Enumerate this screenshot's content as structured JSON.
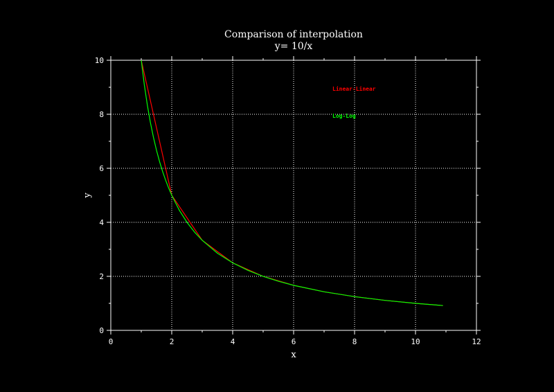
{
  "chart_data": {
    "type": "line",
    "title": "Comparison of interpolation",
    "subtitle": "y= 10/x",
    "xlabel": "x",
    "ylabel": "y",
    "xlim": [
      0,
      12
    ],
    "ylim": [
      0,
      10
    ],
    "xticks": [
      "0",
      "2",
      "4",
      "6",
      "8",
      "10",
      "12"
    ],
    "yticks": [
      "0",
      "2",
      "4",
      "6",
      "8",
      "10"
    ],
    "grid": true,
    "legend_position": "top-right",
    "series": [
      {
        "name": "Linear-Linear",
        "color": "#ff0000",
        "x": [
          1,
          2,
          3,
          4,
          5,
          6,
          7,
          8,
          9,
          10,
          10.9
        ],
        "y": [
          10,
          5,
          3.333,
          2.5,
          2,
          1.667,
          1.429,
          1.25,
          1.111,
          1,
          0.917
        ]
      },
      {
        "name": "Log-Log",
        "color": "#00ff00",
        "x": [
          1,
          1.1,
          1.2,
          1.3,
          1.4,
          1.5,
          1.6,
          1.7,
          1.8,
          1.9,
          2,
          2.25,
          2.5,
          2.75,
          3,
          3.5,
          4,
          4.5,
          5,
          5.5,
          6,
          7,
          8,
          9,
          10,
          10.9
        ],
        "y": [
          10,
          9.091,
          8.333,
          7.692,
          7.143,
          6.667,
          6.25,
          5.882,
          5.556,
          5.263,
          5,
          4.444,
          4,
          3.636,
          3.333,
          2.857,
          2.5,
          2.222,
          2,
          1.818,
          1.667,
          1.429,
          1.25,
          1.111,
          1,
          0.917
        ]
      }
    ]
  }
}
